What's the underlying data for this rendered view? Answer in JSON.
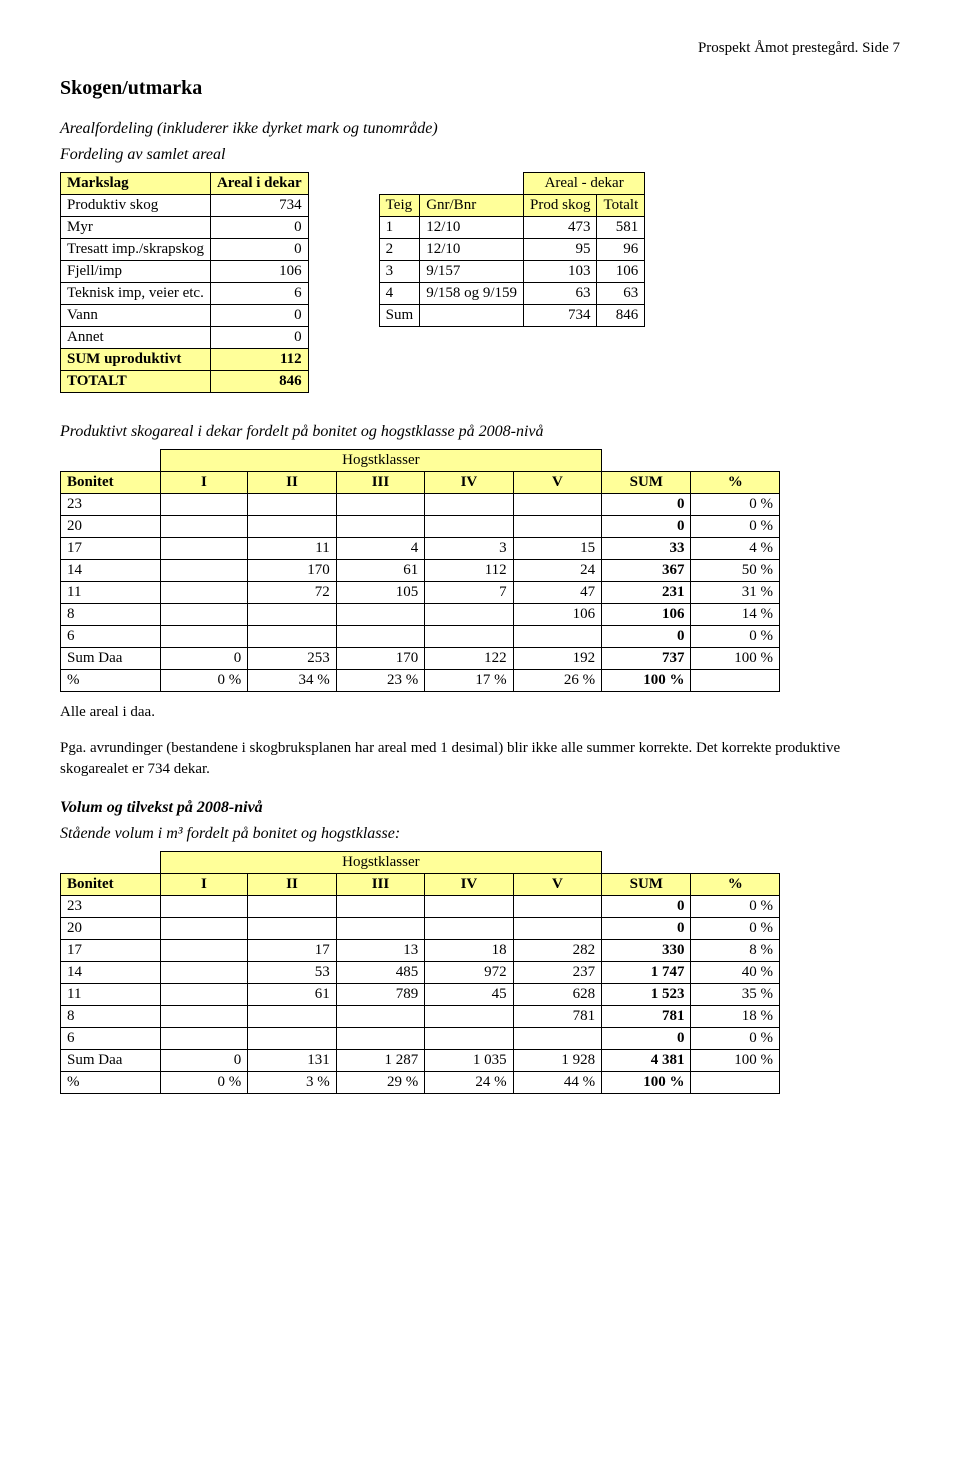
{
  "header": {
    "text": "Prospekt Åmot prestegård. Side 7"
  },
  "section_title": "Skogen/utmarka",
  "areal_caption": "Arealfordeling (inkluderer ikke dyrket mark og tunområde)",
  "fordeling_caption": "Fordeling av samlet areal",
  "markslag": {
    "cols": [
      "Markslag",
      "Areal i dekar"
    ],
    "rows": [
      [
        "Produktiv skog",
        "734"
      ],
      [
        "Myr",
        "0"
      ],
      [
        "Tresatt imp./skrapskog",
        "0"
      ],
      [
        "Fjell/imp",
        "106"
      ],
      [
        "Teknisk imp, veier etc.",
        "6"
      ],
      [
        "Vann",
        "0"
      ],
      [
        "Annet",
        "0"
      ],
      [
        "SUM uproduktivt",
        "112"
      ],
      [
        "TOTALT",
        "846"
      ]
    ]
  },
  "areal_dekar": {
    "super_header": "Areal -    dekar",
    "cols": [
      "Teig",
      "Gnr/Bnr",
      "Prod skog",
      "Totalt"
    ],
    "rows": [
      [
        "1",
        "12/10",
        "473",
        "581"
      ],
      [
        "2",
        "12/10",
        "95",
        "96"
      ],
      [
        "3",
        "9/157",
        "103",
        "106"
      ],
      [
        "4",
        "9/158 og 9/159",
        "63",
        "63"
      ],
      [
        "Sum",
        "",
        "734",
        "846"
      ]
    ]
  },
  "prod_skog_intro": "Produktivt skogareal i dekar fordelt på bonitet og hogstklasse på 2008-nivå",
  "hogstklasser_label": "Hogstklasser",
  "bonitet_cols": [
    "Bonitet",
    "I",
    "II",
    "III",
    "IV",
    "V",
    "SUM",
    "%"
  ],
  "skogareal": {
    "rows": [
      [
        "23",
        "",
        "",
        "",
        "",
        "",
        "0",
        "0 %"
      ],
      [
        "20",
        "",
        "",
        "",
        "",
        "",
        "0",
        "0 %"
      ],
      [
        "17",
        "",
        "11",
        "4",
        "3",
        "15",
        "33",
        "4 %"
      ],
      [
        "14",
        "",
        "170",
        "61",
        "112",
        "24",
        "367",
        "50 %"
      ],
      [
        "11",
        "",
        "72",
        "105",
        "7",
        "47",
        "231",
        "31 %"
      ],
      [
        "8",
        "",
        "",
        "",
        "",
        "106",
        "106",
        "14 %"
      ],
      [
        "6",
        "",
        "",
        "",
        "",
        "",
        "0",
        "0 %"
      ],
      [
        "Sum Daa",
        "0",
        "253",
        "170",
        "122",
        "192",
        "737",
        "100 %"
      ],
      [
        "%",
        "0 %",
        "34 %",
        "23 %",
        "17 %",
        "26 %",
        "100 %",
        ""
      ]
    ]
  },
  "note1": "Alle areal i daa.",
  "note2": "Pga. avrundinger (bestandene i skogbruksplanen har areal med 1 desimal) blir ikke alle summer korrekte. Det korrekte produktive skogarealet er 734 dekar.",
  "volum_title": "Volum og tilvekst på 2008-nivå",
  "staende_caption": "Stående volum i m³ fordelt på bonitet og hogstklasse:",
  "volum": {
    "rows": [
      [
        "23",
        "",
        "",
        "",
        "",
        "",
        "0",
        "0 %"
      ],
      [
        "20",
        "",
        "",
        "",
        "",
        "",
        "0",
        "0 %"
      ],
      [
        "17",
        "",
        "17",
        "13",
        "18",
        "282",
        "330",
        "8 %"
      ],
      [
        "14",
        "",
        "53",
        "485",
        "972",
        "237",
        "1 747",
        "40 %"
      ],
      [
        "11",
        "",
        "61",
        "789",
        "45",
        "628",
        "1 523",
        "35 %"
      ],
      [
        "8",
        "",
        "",
        "",
        "",
        "781",
        "781",
        "18 %"
      ],
      [
        "6",
        "",
        "",
        "",
        "",
        "",
        "0",
        "0 %"
      ],
      [
        "Sum Daa",
        "0",
        "131",
        "1 287",
        "1 035",
        "1 928",
        "4 381",
        "100 %"
      ],
      [
        "%",
        "0 %",
        "3 %",
        "29 %",
        "24 %",
        "44 %",
        "100 %",
        ""
      ]
    ]
  },
  "colors": {
    "header_bg": "#ffff99",
    "border": "#000000"
  }
}
